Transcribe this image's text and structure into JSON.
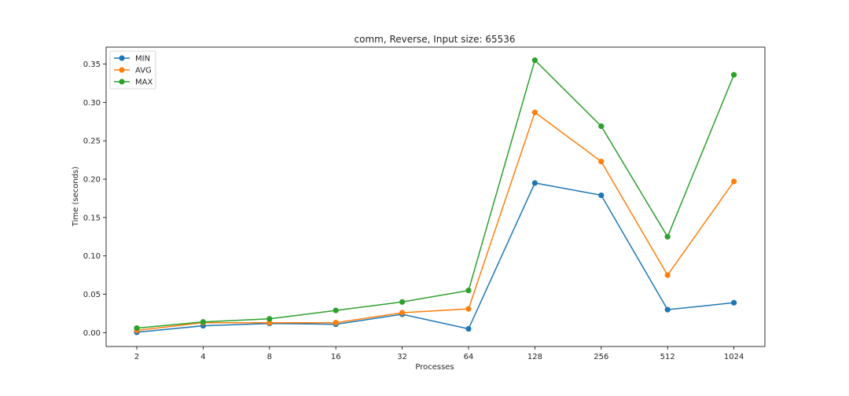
{
  "chart_data": {
    "type": "line",
    "title": "comm, Reverse, Input size: 65536",
    "xlabel": "Processes",
    "ylabel": "Time (seconds)",
    "categories": [
      "2",
      "4",
      "8",
      "16",
      "32",
      "64",
      "128",
      "256",
      "512",
      "1024"
    ],
    "ylim": [
      -0.018,
      0.372
    ],
    "yticks": [
      0.0,
      0.05,
      0.1,
      0.15,
      0.2,
      0.25,
      0.3,
      0.35
    ],
    "ytick_labels": [
      "0.00",
      "0.05",
      "0.10",
      "0.15",
      "0.20",
      "0.25",
      "0.30",
      "0.35"
    ],
    "grid": false,
    "legend_position": "top-left",
    "series": [
      {
        "name": "MIN",
        "color": "#1f77b4",
        "values": [
          0.0005,
          0.009,
          0.012,
          0.011,
          0.024,
          0.005,
          0.195,
          0.179,
          0.03,
          0.039
        ]
      },
      {
        "name": "AVG",
        "color": "#ff7f0e",
        "values": [
          0.003,
          0.013,
          0.013,
          0.013,
          0.026,
          0.031,
          0.287,
          0.223,
          0.075,
          0.197
        ]
      },
      {
        "name": "MAX",
        "color": "#2ca02c",
        "values": [
          0.006,
          0.014,
          0.018,
          0.029,
          0.04,
          0.055,
          0.355,
          0.269,
          0.125,
          0.336
        ]
      }
    ]
  }
}
